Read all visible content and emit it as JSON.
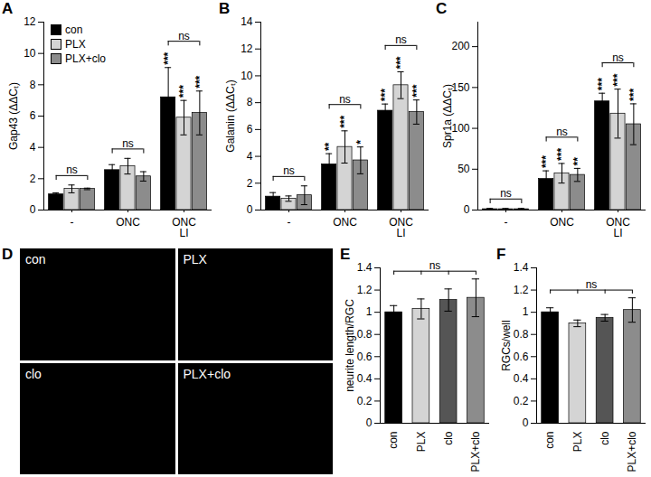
{
  "chart_data": [
    {
      "type": "bar",
      "panel": "A",
      "ylabel": "Gap43 (ΔΔCₜ)",
      "categories": [
        "-",
        "ONC",
        "ONC\nLI"
      ],
      "ylim": [
        0,
        12
      ],
      "yticks": [
        0,
        2,
        4,
        6,
        8,
        10,
        12
      ],
      "legend": "top-left",
      "series": [
        {
          "name": "con",
          "color": "#000000",
          "values": [
            1.0,
            2.55,
            7.2
          ],
          "errors": [
            0.1,
            0.35,
            1.9
          ],
          "labels": [
            null,
            null,
            "***"
          ]
        },
        {
          "name": "PLX",
          "color": "#d4d4d4",
          "values": [
            1.35,
            2.8,
            5.9
          ],
          "errors": [
            0.25,
            0.5,
            1.1
          ],
          "labels": [
            null,
            null,
            "***"
          ]
        },
        {
          "name": "PLX+clo",
          "color": "#8c8c8c",
          "values": [
            1.35,
            2.15,
            6.2
          ],
          "errors": [
            0.05,
            0.3,
            1.4
          ],
          "labels": [
            null,
            null,
            "***"
          ]
        }
      ],
      "significance": [
        {
          "category": "-",
          "text": "ns"
        },
        {
          "category": "ONC",
          "text": "ns"
        },
        {
          "category": "ONC\nLI",
          "text": "ns"
        }
      ]
    },
    {
      "type": "bar",
      "panel": "B",
      "ylabel": "Galanin (ΔΔCₜ)",
      "categories": [
        "-",
        "ONC",
        "ONC\nLI"
      ],
      "ylim": [
        0,
        14
      ],
      "yticks": [
        0,
        2,
        4,
        6,
        8,
        10,
        12,
        14
      ],
      "series": [
        {
          "name": "con",
          "color": "#000000",
          "values": [
            1.0,
            3.4,
            7.4
          ],
          "errors": [
            0.3,
            0.8,
            0.5
          ],
          "labels": [
            null,
            "**",
            "***"
          ]
        },
        {
          "name": "PLX",
          "color": "#d4d4d4",
          "values": [
            0.85,
            4.7,
            9.3
          ],
          "errors": [
            0.2,
            1.2,
            1.0
          ],
          "labels": [
            null,
            "***",
            "***"
          ]
        },
        {
          "name": "PLX+clo",
          "color": "#8c8c8c",
          "values": [
            1.1,
            3.7,
            7.3
          ],
          "errors": [
            0.7,
            1.0,
            0.9
          ],
          "labels": [
            null,
            "*",
            "***"
          ]
        }
      ],
      "significance": [
        {
          "category": "-",
          "text": "ns"
        },
        {
          "category": "ONC",
          "text": "ns"
        },
        {
          "category": "ONC\nLI",
          "text": "ns"
        }
      ]
    },
    {
      "type": "bar",
      "panel": "C",
      "ylabel": "Spr1a (ΔΔCₜ)",
      "categories": [
        "-",
        "ONC",
        "ONC\nLI"
      ],
      "ylim": [
        0,
        230
      ],
      "yticks": [
        0,
        50,
        100,
        150,
        200
      ],
      "series": [
        {
          "name": "con",
          "color": "#000000",
          "values": [
            1,
            38,
            133
          ],
          "errors": [
            1,
            10,
            10
          ],
          "labels": [
            null,
            "***",
            "***"
          ]
        },
        {
          "name": "PLX",
          "color": "#d4d4d4",
          "values": [
            1,
            45,
            118
          ],
          "errors": [
            1,
            12,
            30
          ],
          "labels": [
            null,
            "***",
            "***"
          ]
        },
        {
          "name": "PLX+clo",
          "color": "#8c8c8c",
          "values": [
            1,
            43,
            105
          ],
          "errors": [
            1,
            8,
            25
          ],
          "labels": [
            null,
            "**",
            "***"
          ]
        }
      ],
      "significance": [
        {
          "category": "-",
          "text": "ns"
        },
        {
          "category": "ONC",
          "text": "ns"
        },
        {
          "category": "ONC\nLI",
          "text": "ns"
        }
      ]
    },
    {
      "type": "image",
      "panel": "D",
      "panels": [
        "con",
        "PLX",
        "clo",
        "PLX+clo"
      ]
    },
    {
      "type": "bar",
      "panel": "E",
      "ylabel": "neurite length/RGC",
      "categories": [
        "con",
        "PLX",
        "clo",
        "PLX+clo"
      ],
      "ylim": [
        0,
        1.4
      ],
      "yticks": [
        0,
        0.2,
        0.4,
        0.6,
        0.8,
        1,
        1.2,
        1.4
      ],
      "values": [
        1.0,
        1.03,
        1.11,
        1.13
      ],
      "errors": [
        0.06,
        0.09,
        0.1,
        0.17
      ],
      "colors": [
        "#000000",
        "#d4d4d4",
        "#555555",
        "#8c8c8c"
      ],
      "significance": [
        {
          "categories": [
            "con",
            "PLX",
            "clo",
            "PLX+clo"
          ],
          "text": "ns"
        }
      ]
    },
    {
      "type": "bar",
      "panel": "F",
      "ylabel": "RGCs/well",
      "categories": [
        "con",
        "PLX",
        "clo",
        "PLX+clo"
      ],
      "ylim": [
        0,
        1.4
      ],
      "yticks": [
        0,
        0.2,
        0.4,
        0.6,
        0.8,
        1,
        1.2,
        1.4
      ],
      "values": [
        1.0,
        0.9,
        0.95,
        1.02
      ],
      "errors": [
        0.04,
        0.03,
        0.03,
        0.11
      ],
      "colors": [
        "#000000",
        "#d4d4d4",
        "#555555",
        "#8c8c8c"
      ],
      "significance": [
        {
          "categories": [
            "con",
            "PLX",
            "clo",
            "PLX+clo"
          ],
          "text": "ns"
        }
      ]
    }
  ]
}
